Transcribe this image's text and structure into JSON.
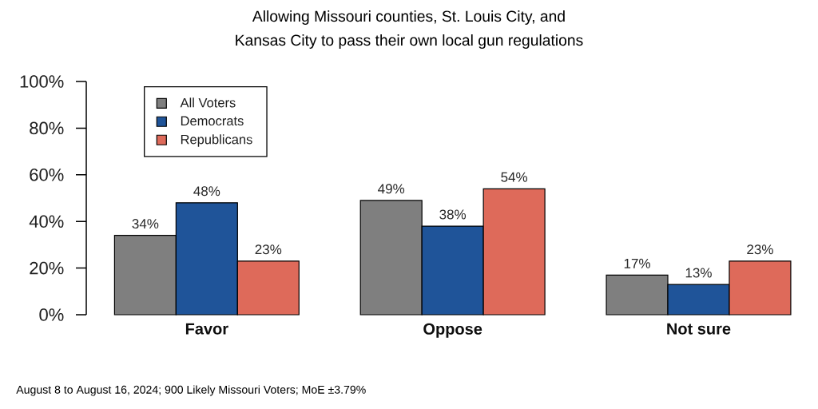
{
  "chart_data": {
    "type": "bar",
    "title": "Allowing Missouri counties, St. Louis City, and Kansas City to pass their own local gun regulations",
    "categories": [
      "Favor",
      "Oppose",
      "Not sure"
    ],
    "series": [
      {
        "name": "All Voters",
        "color": "#7f7f7f",
        "values": [
          34,
          49,
          17
        ],
        "value_labels": [
          "34%",
          "49%",
          "17%"
        ]
      },
      {
        "name": "Democrats",
        "color": "#1f5499",
        "values": [
          48,
          38,
          13
        ],
        "value_labels": [
          "48%",
          "38%",
          "13%"
        ]
      },
      {
        "name": "Republicans",
        "color": "#de6a5a",
        "values": [
          23,
          54,
          23
        ],
        "value_labels": [
          "23%",
          "54%",
          "23%"
        ]
      }
    ],
    "ylim": [
      0,
      100
    ],
    "yticks": [
      {
        "value": 0,
        "label": "0%"
      },
      {
        "value": 20,
        "label": "20%"
      },
      {
        "value": 40,
        "label": "40%"
      },
      {
        "value": 60,
        "label": "60%"
      },
      {
        "value": 80,
        "label": "80%"
      },
      {
        "value": 100,
        "label": "100%"
      }
    ],
    "legend": "top left",
    "annotations": [
      "August 8 to August 16, 2024; 900 Likely Missouri Voters; MoE ±3.79%"
    ]
  }
}
